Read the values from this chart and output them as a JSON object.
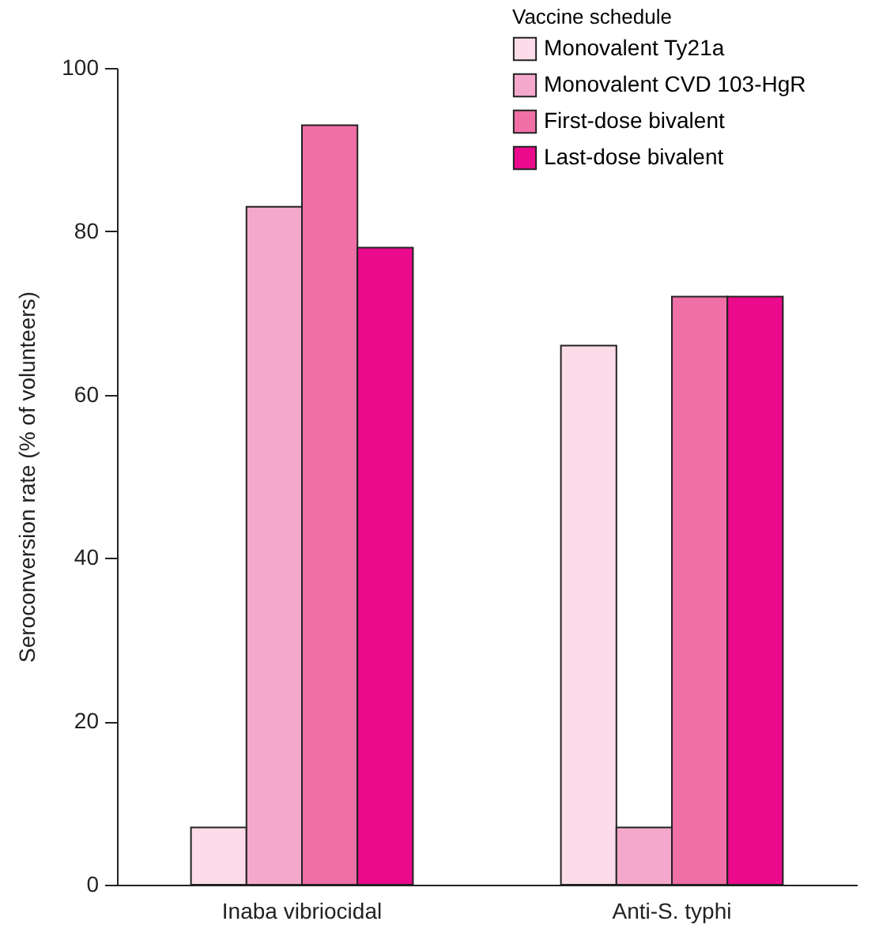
{
  "chart_data": {
    "type": "bar",
    "ylabel": "Seroconversion rate (% of volunteers)",
    "legend_title": "Vaccine schedule",
    "categories": [
      "Inaba vibriocidal",
      "Anti-S. typhi"
    ],
    "series": [
      {
        "name": "Monovalent Ty21a",
        "color": "#fbdce8",
        "values": [
          7,
          66
        ]
      },
      {
        "name": "Monovalent CVD 103-HgR",
        "color": "#f4a8cc",
        "values": [
          83,
          7
        ]
      },
      {
        "name": "First-dose bivalent",
        "color": "#ef6fa6",
        "values": [
          93,
          72
        ]
      },
      {
        "name": "Last-dose bivalent",
        "color": "#ec0a8c",
        "values": [
          78,
          72
        ]
      }
    ],
    "ylim": [
      0,
      100
    ],
    "yticks": [
      0,
      20,
      40,
      60,
      80,
      100
    ],
    "grid": false,
    "legend": "top right"
  }
}
